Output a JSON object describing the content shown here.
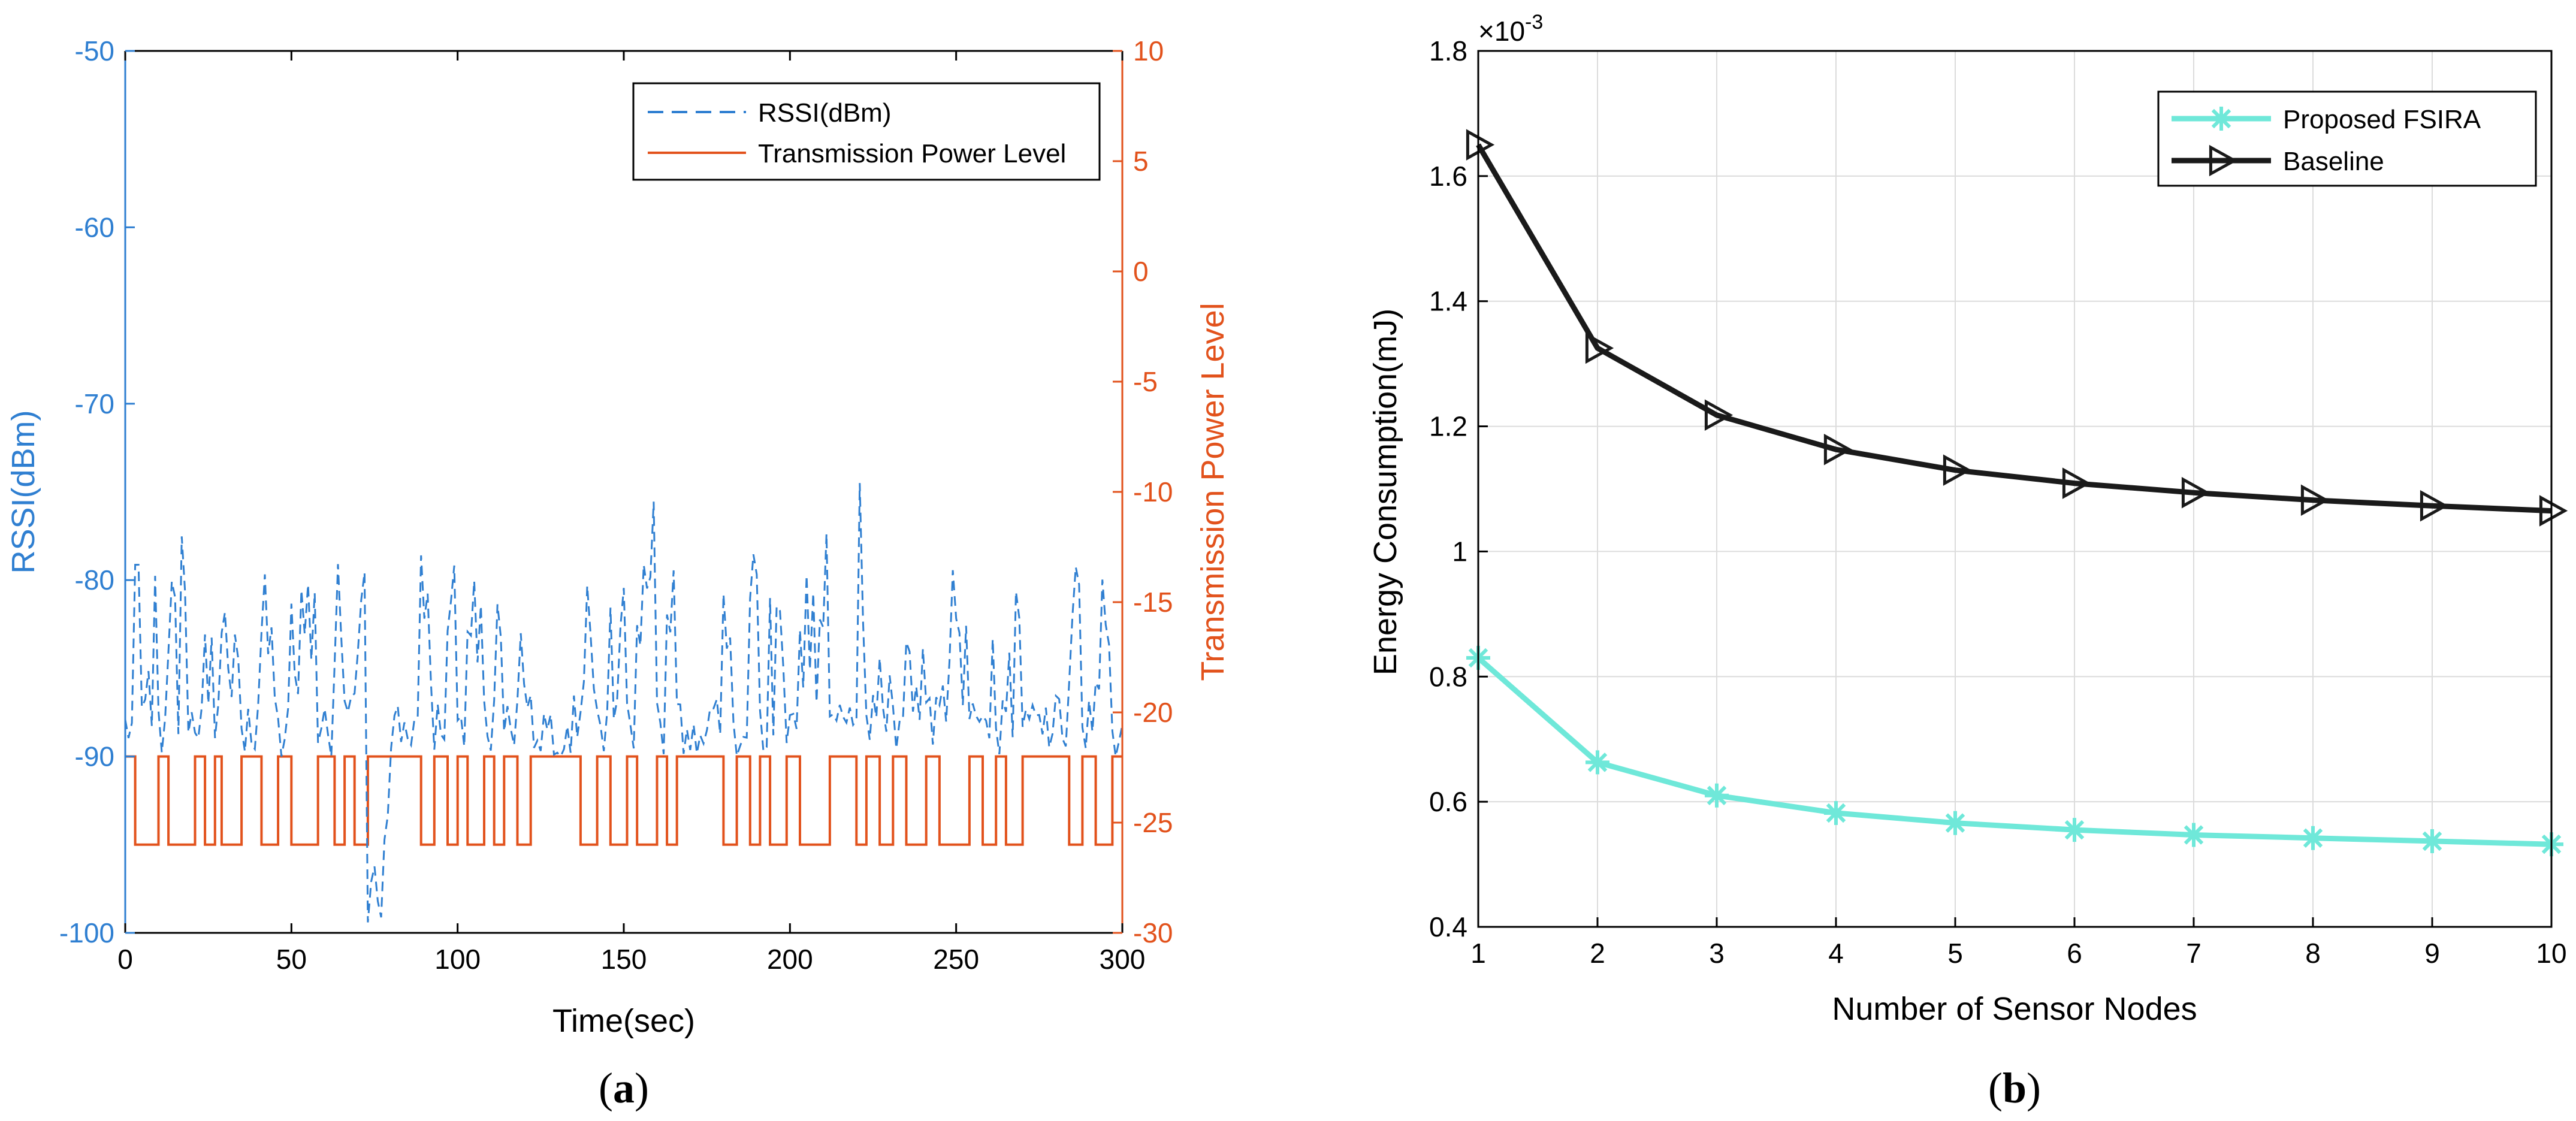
{
  "panel_labels": {
    "a": {
      "open": "(",
      "letter": "a",
      "close": ")"
    },
    "b": {
      "open": "(",
      "letter": "b",
      "close": ")"
    }
  },
  "colors": {
    "rssi": "#2f7fd1",
    "power": "#e2521c",
    "fsira": "#6fe8d9",
    "baseline": "#1a1a1a",
    "grid": "#dcdcdc",
    "axis": "#000000"
  },
  "chart_data": [
    {
      "id": "a",
      "type": "line",
      "xlabel": "Time(sec)",
      "ylabel": "RSSI(dBm)",
      "ylabel_right": "Transmission Power Level",
      "xlim": [
        0,
        300
      ],
      "ylim": [
        -100,
        -50
      ],
      "ylim_right": [
        -30,
        10
      ],
      "xticks": [
        "0",
        "50",
        "100",
        "150",
        "200",
        "250",
        "300"
      ],
      "yticks": [
        "-100",
        "-90",
        "-80",
        "-70",
        "-60",
        "-50"
      ],
      "yticks_right": [
        "-30",
        "-25",
        "-20",
        "-15",
        "-10",
        "-5",
        "0",
        "5",
        "10"
      ],
      "grid": false,
      "legend_position": "top-right",
      "series": [
        {
          "name": "RSSI(dBm)",
          "axis": "left",
          "style": "dashed",
          "generator": {
            "seed": 7,
            "n": 301,
            "base": -90,
            "min": -100,
            "max": -74.5
          }
        },
        {
          "name": "Transmission Power Level",
          "axis": "right",
          "style": "solid",
          "levels": [
            -22,
            -26
          ],
          "high_segments": [
            [
              0,
              2
            ],
            [
              10,
              12
            ],
            [
              21,
              23
            ],
            [
              27,
              28
            ],
            [
              35,
              40
            ],
            [
              46,
              49
            ],
            [
              58,
              62
            ],
            [
              66,
              68
            ],
            [
              73,
              88
            ],
            [
              93,
              96
            ],
            [
              100,
              102
            ],
            [
              108,
              110
            ],
            [
              114,
              117
            ],
            [
              122,
              136
            ],
            [
              142,
              145
            ],
            [
              151,
              153
            ],
            [
              160,
              162
            ],
            [
              166,
              179
            ],
            [
              184,
              187
            ],
            [
              191,
              193
            ],
            [
              199,
              202
            ],
            [
              212,
              219
            ],
            [
              223,
              226
            ],
            [
              231,
              234
            ],
            [
              241,
              244
            ],
            [
              254,
              257
            ],
            [
              262,
              264
            ],
            [
              270,
              283
            ],
            [
              288,
              291
            ],
            [
              297,
              300
            ]
          ]
        }
      ]
    },
    {
      "id": "b",
      "type": "line",
      "xlabel": "Number of Sensor Nodes",
      "ylabel": "Energy Consumption(mJ)",
      "exponent_label": "×10",
      "exponent_power": "-3",
      "xlim": [
        1,
        10
      ],
      "ylim": [
        0.4,
        1.8
      ],
      "xticks": [
        "1",
        "2",
        "3",
        "4",
        "5",
        "6",
        "7",
        "8",
        "9",
        "10"
      ],
      "yticks": [
        "0.4",
        "0.6",
        "0.8",
        "1",
        "1.2",
        "1.4",
        "1.6",
        "1.8"
      ],
      "grid": true,
      "legend_position": "top-right",
      "x": [
        1,
        2,
        3,
        4,
        5,
        6,
        7,
        8,
        9,
        10
      ],
      "series": [
        {
          "name": "Proposed FSIRA",
          "marker": "asterisk",
          "values": [
            0.83,
            0.663,
            0.61,
            0.582,
            0.566,
            0.555,
            0.547,
            0.542,
            0.537,
            0.532
          ]
        },
        {
          "name": "Baseline",
          "marker": "triangle-right",
          "values": [
            1.65,
            1.325,
            1.218,
            1.163,
            1.13,
            1.109,
            1.094,
            1.082,
            1.073,
            1.065
          ]
        }
      ]
    }
  ]
}
